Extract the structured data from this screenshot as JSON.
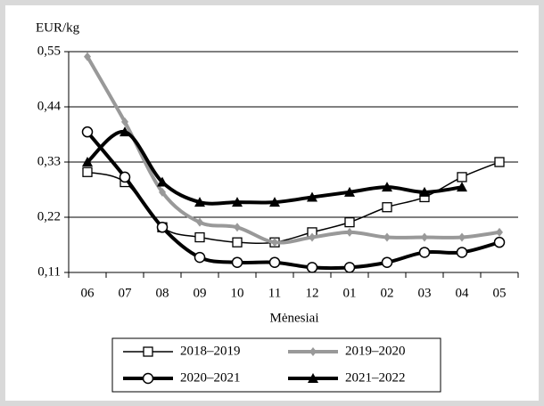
{
  "chart_data": {
    "type": "line",
    "y_label": "EUR/kg",
    "x_label": "Mėnesiai",
    "categories": [
      "06",
      "07",
      "08",
      "09",
      "10",
      "11",
      "12",
      "01",
      "02",
      "03",
      "04",
      "05"
    ],
    "ylim": [
      0.11,
      0.55
    ],
    "yticks": [
      {
        "value": 0.11,
        "label": "0,11"
      },
      {
        "value": 0.22,
        "label": "0,22"
      },
      {
        "value": 0.33,
        "label": "0,33"
      },
      {
        "value": 0.44,
        "label": "0,44"
      },
      {
        "value": 0.55,
        "label": "0,55"
      }
    ],
    "grid": true,
    "legend": "bottom",
    "series": [
      {
        "name": "2018–2019",
        "color": "#000000",
        "marker": "square",
        "values": [
          0.31,
          0.29,
          0.2,
          0.18,
          0.17,
          0.17,
          0.19,
          0.21,
          0.24,
          0.26,
          0.3,
          0.33
        ]
      },
      {
        "name": "2019–2020",
        "color": "#999999",
        "marker": "diamond",
        "values": [
          0.54,
          0.41,
          0.27,
          0.21,
          0.2,
          0.17,
          0.18,
          0.19,
          0.18,
          0.18,
          0.18,
          0.19
        ]
      },
      {
        "name": "2020–2021",
        "color": "#000000",
        "marker": "circle",
        "values": [
          0.39,
          0.3,
          0.2,
          0.14,
          0.13,
          0.13,
          0.12,
          0.12,
          0.13,
          0.15,
          0.15,
          0.17
        ]
      },
      {
        "name": "2021–2022",
        "color": "#000000",
        "marker": "triangle",
        "values": [
          0.33,
          0.39,
          0.29,
          0.25,
          0.25,
          0.25,
          0.26,
          0.27,
          0.28,
          0.27,
          0.28,
          null
        ]
      }
    ]
  }
}
